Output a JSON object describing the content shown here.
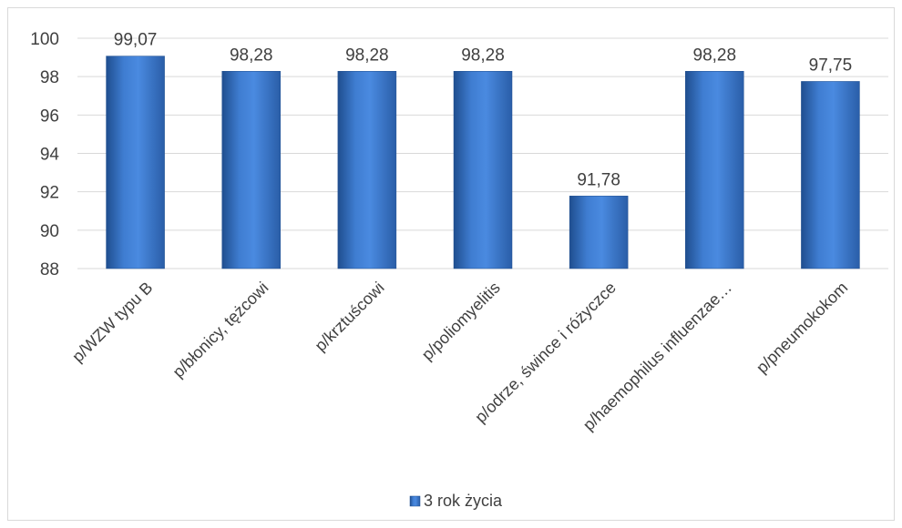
{
  "chart_data": {
    "type": "bar",
    "categories": [
      "p/WZW typu B",
      "p/błonicy, tężcowi",
      "p/krztuścowi",
      "p/poliomyelitis",
      "p/odrze, śwince i różyczce",
      "p/haemophilus influenzae…",
      "p/pneumokokom"
    ],
    "series": [
      {
        "name": "3 rok życia",
        "values": [
          99.07,
          98.28,
          98.28,
          98.28,
          91.78,
          98.28,
          97.75
        ]
      }
    ],
    "data_labels": [
      "99,07",
      "98,28",
      "98,28",
      "98,28",
      "91,78",
      "98,28",
      "97,75"
    ],
    "ylim": [
      88,
      100
    ],
    "yticks": [
      88,
      90,
      92,
      94,
      96,
      98,
      100
    ],
    "grid": true,
    "legend_position": "bottom",
    "bar_color": "#3f7dd1",
    "bar_color_dark": "#1f4e8f",
    "grid_color": "#d9d9d9",
    "text_color": "#404040"
  }
}
